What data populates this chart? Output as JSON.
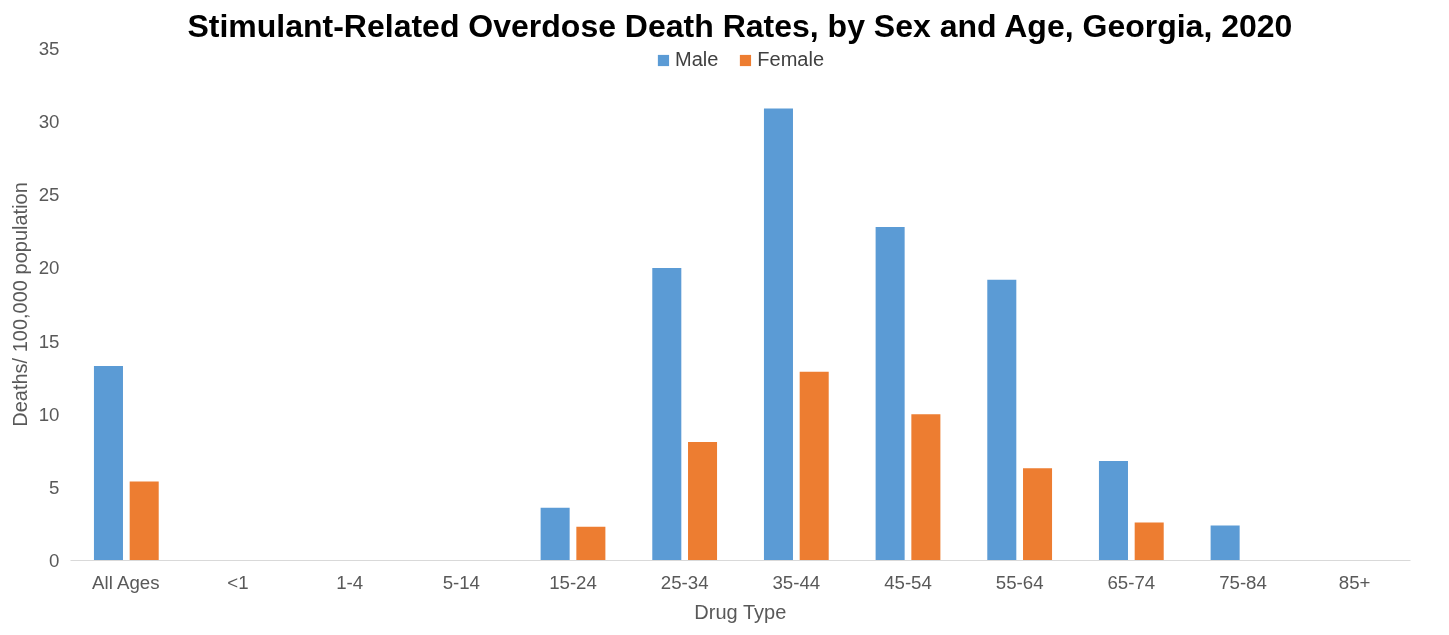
{
  "chart_data": {
    "type": "bar",
    "title": "Stimulant-Related Overdose Death Rates, by Sex and Age, Georgia, 2020",
    "xlabel": "Drug Type",
    "ylabel": "Deaths/ 100,000 population",
    "categories": [
      "All Ages",
      "<1",
      "1-4",
      "5-14",
      "15-24",
      "25-34",
      "35-44",
      "45-54",
      "55-64",
      "65-74",
      "75-84",
      "85+"
    ],
    "series": [
      {
        "name": "Male",
        "color": "#5b9bd5",
        "values": [
          13.3,
          null,
          null,
          null,
          3.6,
          20.0,
          30.9,
          22.8,
          19.2,
          6.8,
          2.4,
          null
        ]
      },
      {
        "name": "Female",
        "color": "#ed7d31",
        "values": [
          5.4,
          null,
          null,
          null,
          2.3,
          8.1,
          12.9,
          10.0,
          6.3,
          2.6,
          null,
          null
        ]
      }
    ],
    "ylim": [
      0,
      35
    ],
    "yticks": [
      0,
      5,
      10,
      15,
      20,
      25,
      30,
      35
    ],
    "grid": false,
    "legend": "top"
  }
}
